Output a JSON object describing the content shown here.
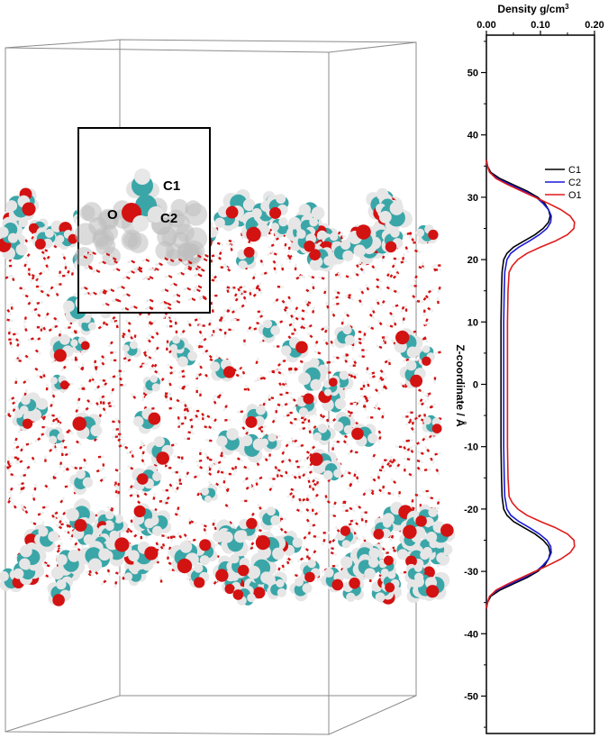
{
  "snapshot": {
    "inset_labels": {
      "c1": "C1",
      "c2": "C2",
      "o": "O"
    },
    "colors": {
      "carbon": "#3aa6a8",
      "oxygen": "#d31212",
      "hydrogen": "#e6e6e6",
      "box_line": "#8c8c8c"
    }
  },
  "chart_data": {
    "type": "line",
    "orientation": "vertical-profile",
    "xlabel": "Density g/cm3",
    "xlabel_main": "Density g/cm",
    "xlabel_sup": "3",
    "ylabel": "Z-coordinate / Å",
    "xlim": [
      0,
      0.2
    ],
    "ylim": [
      -56,
      56
    ],
    "xticks": [
      0.0,
      0.1,
      0.2
    ],
    "xtick_labels": [
      "0.00",
      "0.10",
      "0.20"
    ],
    "yticks": [
      -50,
      -40,
      -30,
      -20,
      -10,
      0,
      10,
      20,
      30,
      40,
      50
    ],
    "ytick_labels": [
      "-50",
      "-40",
      "-30",
      "-20",
      "-10",
      "0",
      "10",
      "20",
      "30",
      "40",
      "50"
    ],
    "grid": false,
    "legend_position": "top-right",
    "series": [
      {
        "name": "C1",
        "color": "#000000",
        "points": [
          [
            0.0,
            -36
          ],
          [
            0.002,
            -35
          ],
          [
            0.008,
            -34
          ],
          [
            0.025,
            -33
          ],
          [
            0.05,
            -32
          ],
          [
            0.075,
            -31
          ],
          [
            0.095,
            -30
          ],
          [
            0.108,
            -29
          ],
          [
            0.115,
            -28
          ],
          [
            0.118,
            -27
          ],
          [
            0.115,
            -26
          ],
          [
            0.105,
            -25
          ],
          [
            0.09,
            -24
          ],
          [
            0.07,
            -23
          ],
          [
            0.05,
            -22
          ],
          [
            0.038,
            -21
          ],
          [
            0.032,
            -20
          ],
          [
            0.029,
            -18
          ],
          [
            0.028,
            -15
          ],
          [
            0.027,
            -10
          ],
          [
            0.027,
            0
          ],
          [
            0.027,
            10
          ],
          [
            0.028,
            15
          ],
          [
            0.029,
            18
          ],
          [
            0.032,
            20
          ],
          [
            0.038,
            21
          ],
          [
            0.05,
            22
          ],
          [
            0.07,
            23
          ],
          [
            0.09,
            24
          ],
          [
            0.105,
            25
          ],
          [
            0.115,
            26
          ],
          [
            0.118,
            27
          ],
          [
            0.115,
            28
          ],
          [
            0.108,
            29
          ],
          [
            0.095,
            30
          ],
          [
            0.075,
            31
          ],
          [
            0.05,
            32
          ],
          [
            0.025,
            33
          ],
          [
            0.008,
            34
          ],
          [
            0.002,
            35
          ],
          [
            0.0,
            36
          ]
        ]
      },
      {
        "name": "C2",
        "color": "#1a1ad6",
        "points": [
          [
            0.0,
            -36
          ],
          [
            0.002,
            -35
          ],
          [
            0.006,
            -34
          ],
          [
            0.02,
            -33
          ],
          [
            0.045,
            -32
          ],
          [
            0.07,
            -31
          ],
          [
            0.092,
            -30
          ],
          [
            0.105,
            -29
          ],
          [
            0.115,
            -28
          ],
          [
            0.12,
            -27
          ],
          [
            0.119,
            -26
          ],
          [
            0.112,
            -25
          ],
          [
            0.098,
            -24
          ],
          [
            0.08,
            -23
          ],
          [
            0.06,
            -22
          ],
          [
            0.045,
            -21
          ],
          [
            0.038,
            -20
          ],
          [
            0.034,
            -18
          ],
          [
            0.033,
            -15
          ],
          [
            0.032,
            -10
          ],
          [
            0.032,
            0
          ],
          [
            0.032,
            10
          ],
          [
            0.033,
            15
          ],
          [
            0.034,
            18
          ],
          [
            0.038,
            20
          ],
          [
            0.045,
            21
          ],
          [
            0.06,
            22
          ],
          [
            0.08,
            23
          ],
          [
            0.098,
            24
          ],
          [
            0.112,
            25
          ],
          [
            0.119,
            26
          ],
          [
            0.12,
            27
          ],
          [
            0.115,
            28
          ],
          [
            0.105,
            29
          ],
          [
            0.092,
            30
          ],
          [
            0.07,
            31
          ],
          [
            0.045,
            32
          ],
          [
            0.02,
            33
          ],
          [
            0.006,
            34
          ],
          [
            0.002,
            35
          ],
          [
            0.0,
            36
          ]
        ]
      },
      {
        "name": "O1",
        "color": "#e01a1a",
        "points": [
          [
            0.0,
            -36
          ],
          [
            0.002,
            -35
          ],
          [
            0.006,
            -34
          ],
          [
            0.018,
            -33
          ],
          [
            0.04,
            -32
          ],
          [
            0.065,
            -31
          ],
          [
            0.09,
            -30
          ],
          [
            0.115,
            -29
          ],
          [
            0.138,
            -28
          ],
          [
            0.155,
            -27
          ],
          [
            0.163,
            -26
          ],
          [
            0.162,
            -25
          ],
          [
            0.15,
            -24
          ],
          [
            0.128,
            -23
          ],
          [
            0.1,
            -22
          ],
          [
            0.075,
            -21
          ],
          [
            0.058,
            -20
          ],
          [
            0.048,
            -19
          ],
          [
            0.042,
            -18
          ],
          [
            0.04,
            -15
          ],
          [
            0.039,
            -10
          ],
          [
            0.039,
            0
          ],
          [
            0.039,
            10
          ],
          [
            0.04,
            15
          ],
          [
            0.042,
            18
          ],
          [
            0.048,
            19
          ],
          [
            0.058,
            20
          ],
          [
            0.075,
            21
          ],
          [
            0.1,
            22
          ],
          [
            0.128,
            23
          ],
          [
            0.15,
            24
          ],
          [
            0.162,
            25
          ],
          [
            0.163,
            26
          ],
          [
            0.155,
            27
          ],
          [
            0.138,
            28
          ],
          [
            0.115,
            29
          ],
          [
            0.09,
            30
          ],
          [
            0.065,
            31
          ],
          [
            0.04,
            32
          ],
          [
            0.018,
            33
          ],
          [
            0.006,
            34
          ],
          [
            0.002,
            35
          ],
          [
            0.0,
            36
          ]
        ]
      }
    ]
  }
}
